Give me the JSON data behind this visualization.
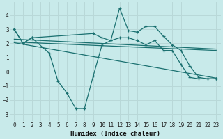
{
  "xlabel": "Humidex (Indice chaleur)",
  "background_color": "#c8eaea",
  "grid_color": "#b8d8d8",
  "line_color": "#1a7070",
  "xlim": [
    -0.5,
    23.5
  ],
  "ylim": [
    -3.5,
    4.9
  ],
  "yticks": [
    -3,
    -2,
    -1,
    0,
    1,
    2,
    3,
    4
  ],
  "xticks": [
    0,
    1,
    2,
    3,
    4,
    5,
    6,
    7,
    8,
    9,
    10,
    11,
    12,
    13,
    14,
    15,
    16,
    17,
    18,
    19,
    20,
    21,
    22,
    23
  ],
  "series1_x": [
    0,
    1,
    2,
    9,
    10,
    11,
    12,
    13,
    14,
    15,
    16,
    17,
    18,
    19,
    20,
    21,
    22,
    23
  ],
  "series1_y": [
    3.0,
    2.0,
    2.4,
    2.7,
    2.4,
    2.2,
    4.5,
    2.9,
    2.8,
    3.2,
    3.2,
    2.5,
    1.9,
    1.5,
    0.4,
    -0.4,
    -0.5,
    -0.5
  ],
  "series2_x": [
    0,
    1,
    2,
    4,
    5,
    6,
    7,
    8,
    9,
    10,
    11,
    12,
    13,
    14,
    15,
    16,
    17,
    18,
    19,
    20,
    21,
    22,
    23
  ],
  "series2_y": [
    3.0,
    2.0,
    2.4,
    1.3,
    -0.7,
    -1.5,
    -2.6,
    -2.6,
    -0.3,
    1.9,
    2.2,
    2.4,
    2.4,
    2.2,
    1.9,
    2.2,
    1.5,
    1.5,
    0.5,
    -0.4,
    -0.5,
    -0.5,
    -0.5
  ],
  "trend1_x": [
    0,
    23
  ],
  "trend1_y": [
    2.3,
    1.6
  ],
  "trend2_x": [
    0,
    23
  ],
  "trend2_y": [
    2.1,
    1.5
  ],
  "trend3_x": [
    0,
    23
  ],
  "trend3_y": [
    2.05,
    -0.45
  ]
}
